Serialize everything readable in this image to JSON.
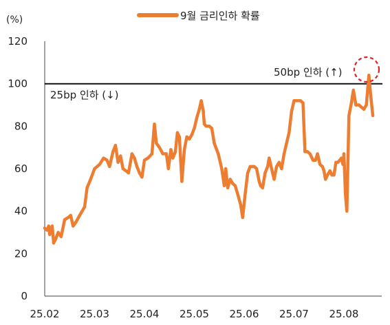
{
  "chart_data": {
    "type": "line",
    "title": "",
    "ylabel": "(%)",
    "xlabel": "",
    "ylim": [
      0,
      120
    ],
    "yticks": [
      0,
      20,
      40,
      60,
      80,
      100,
      120
    ],
    "x_tick_labels": [
      "25.02",
      "25.03",
      "25.04",
      "25.05",
      "25.06",
      "25.07",
      "25.08"
    ],
    "legend_position": "top-center",
    "grid": false,
    "colors": {
      "series": "#ED7D31",
      "reference_line": "#000000",
      "highlight_circle": "#E02020"
    },
    "reference_line": {
      "y": 100
    },
    "annotations": {
      "above_line": "50bp 인하 (↑)",
      "below_line": "25bp 인하 (↓)"
    },
    "series": [
      {
        "name": "9월 금리인하 확률",
        "points": [
          [
            0.0,
            32
          ],
          [
            0.05,
            31
          ],
          [
            0.08,
            33
          ],
          [
            0.1,
            29
          ],
          [
            0.13,
            32
          ],
          [
            0.15,
            33
          ],
          [
            0.18,
            25
          ],
          [
            0.22,
            27
          ],
          [
            0.27,
            30
          ],
          [
            0.33,
            28
          ],
          [
            0.4,
            36
          ],
          [
            0.47,
            37
          ],
          [
            0.52,
            38
          ],
          [
            0.57,
            33
          ],
          [
            0.63,
            35
          ],
          [
            0.7,
            38
          ],
          [
            0.8,
            42
          ],
          [
            0.85,
            51
          ],
          [
            0.92,
            55
          ],
          [
            1.0,
            60
          ],
          [
            1.1,
            62
          ],
          [
            1.18,
            65
          ],
          [
            1.25,
            64
          ],
          [
            1.3,
            61
          ],
          [
            1.37,
            68
          ],
          [
            1.42,
            71
          ],
          [
            1.47,
            63
          ],
          [
            1.52,
            66
          ],
          [
            1.57,
            60
          ],
          [
            1.63,
            59
          ],
          [
            1.68,
            58
          ],
          [
            1.75,
            67
          ],
          [
            1.8,
            65
          ],
          [
            1.85,
            61
          ],
          [
            1.9,
            58
          ],
          [
            1.95,
            56
          ],
          [
            2.0,
            64
          ],
          [
            2.07,
            65
          ],
          [
            2.15,
            67
          ],
          [
            2.2,
            81
          ],
          [
            2.24,
            72
          ],
          [
            2.3,
            70
          ],
          [
            2.37,
            67
          ],
          [
            2.44,
            67
          ],
          [
            2.48,
            60
          ],
          [
            2.53,
            69
          ],
          [
            2.57,
            65
          ],
          [
            2.62,
            68
          ],
          [
            2.66,
            77
          ],
          [
            2.7,
            75
          ],
          [
            2.75,
            54
          ],
          [
            2.8,
            69
          ],
          [
            2.85,
            75
          ],
          [
            2.9,
            74
          ],
          [
            2.95,
            76
          ],
          [
            3.0,
            79
          ],
          [
            3.05,
            84
          ],
          [
            3.1,
            88
          ],
          [
            3.14,
            92
          ],
          [
            3.18,
            87
          ],
          [
            3.2,
            81
          ],
          [
            3.24,
            80
          ],
          [
            3.3,
            80
          ],
          [
            3.35,
            79
          ],
          [
            3.4,
            72
          ],
          [
            3.48,
            67
          ],
          [
            3.55,
            60
          ],
          [
            3.6,
            52
          ],
          [
            3.63,
            60
          ],
          [
            3.67,
            51
          ],
          [
            3.72,
            55
          ],
          [
            3.77,
            53
          ],
          [
            3.82,
            52
          ],
          [
            3.87,
            48
          ],
          [
            3.93,
            43
          ],
          [
            3.97,
            37
          ],
          [
            4.02,
            48
          ],
          [
            4.07,
            58
          ],
          [
            4.12,
            61
          ],
          [
            4.2,
            61
          ],
          [
            4.25,
            60
          ],
          [
            4.3,
            54
          ],
          [
            4.33,
            52
          ],
          [
            4.37,
            51
          ],
          [
            4.42,
            58
          ],
          [
            4.47,
            61
          ],
          [
            4.5,
            65
          ],
          [
            4.55,
            60
          ],
          [
            4.6,
            55
          ],
          [
            4.65,
            61
          ],
          [
            4.7,
            63
          ],
          [
            4.75,
            60
          ],
          [
            4.8,
            67
          ],
          [
            4.85,
            72
          ],
          [
            4.9,
            77
          ],
          [
            4.95,
            87
          ],
          [
            5.0,
            92
          ],
          [
            5.07,
            92
          ],
          [
            5.13,
            92
          ],
          [
            5.18,
            91
          ],
          [
            5.22,
            68
          ],
          [
            5.27,
            68
          ],
          [
            5.32,
            67
          ],
          [
            5.38,
            64
          ],
          [
            5.43,
            64
          ],
          [
            5.47,
            67
          ],
          [
            5.52,
            62
          ],
          [
            5.57,
            61
          ],
          [
            5.6,
            59
          ],
          [
            5.63,
            55
          ],
          [
            5.67,
            57
          ],
          [
            5.72,
            59
          ],
          [
            5.76,
            57
          ],
          [
            5.8,
            57
          ],
          [
            5.84,
            63
          ],
          [
            5.88,
            63
          ],
          [
            5.95,
            65
          ],
          [
            5.98,
            62
          ],
          [
            6.0,
            67
          ],
          [
            6.03,
            48
          ],
          [
            6.06,
            40
          ],
          [
            6.1,
            85
          ],
          [
            6.15,
            91
          ],
          [
            6.19,
            97
          ],
          [
            6.24,
            90
          ],
          [
            6.3,
            90
          ],
          [
            6.35,
            89
          ],
          [
            6.4,
            88
          ],
          [
            6.45,
            90
          ],
          [
            6.5,
            104
          ],
          [
            6.54,
            94
          ],
          [
            6.58,
            85
          ]
        ]
      }
    ]
  }
}
